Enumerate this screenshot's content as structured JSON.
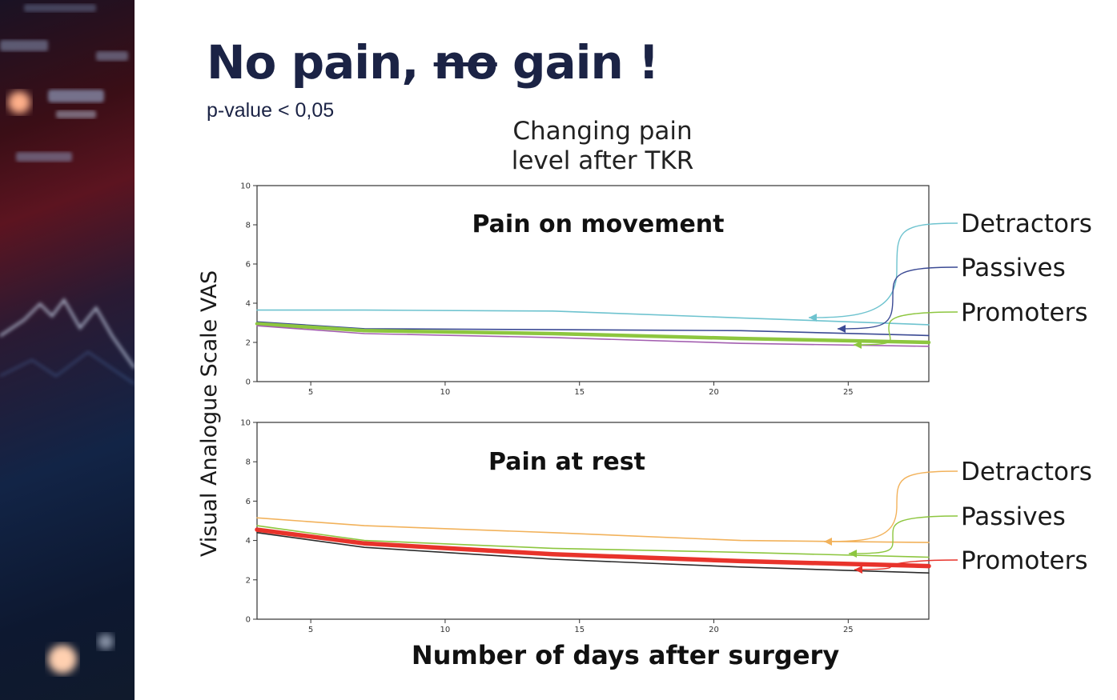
{
  "slide": {
    "title_prefix": "No pain, ",
    "title_strike": "no",
    "title_suffix": " gain !",
    "subtitle": "p-value < 0,05",
    "chart_heading_line1": "Changing pain",
    "chart_heading_line2": "level after TKR"
  },
  "chart_data": [
    {
      "type": "line",
      "title": "Pain on movement",
      "xlabel": "Number of days after surgery",
      "ylabel": "Visual Analogue Scale VAS",
      "xlim": [
        3,
        28
      ],
      "ylim": [
        0,
        10
      ],
      "xticks": [
        5,
        10,
        15,
        20,
        25
      ],
      "yticks": [
        0,
        2,
        4,
        6,
        8,
        10
      ],
      "legend": [
        "Detractors",
        "Passives",
        "Promoters"
      ],
      "series": [
        {
          "name": "Detractors",
          "color": "#6ec3cf",
          "x": [
            3,
            7,
            14,
            21,
            28
          ],
          "values": [
            3.65,
            3.65,
            3.6,
            3.25,
            2.9
          ]
        },
        {
          "name": "Passives",
          "color": "#3b4a94",
          "x": [
            3,
            7,
            14,
            21,
            28
          ],
          "values": [
            3.05,
            2.7,
            2.65,
            2.6,
            2.35
          ]
        },
        {
          "name": "Promoters",
          "color": "#8dc63f",
          "x": [
            3,
            7,
            14,
            21,
            28
          ],
          "values": [
            2.95,
            2.6,
            2.45,
            2.2,
            2.0
          ]
        },
        {
          "name": "",
          "color": "#a35fb0",
          "x": [
            3,
            7,
            14,
            21,
            28
          ],
          "values": [
            2.85,
            2.45,
            2.25,
            1.95,
            1.8
          ]
        }
      ]
    },
    {
      "type": "line",
      "title": "Pain at rest",
      "xlabel": "Number of days after surgery",
      "ylabel": "Visual Analogue Scale VAS",
      "xlim": [
        3,
        28
      ],
      "ylim": [
        0,
        10
      ],
      "xticks": [
        5,
        10,
        15,
        20,
        25
      ],
      "yticks": [
        0,
        2,
        4,
        6,
        8,
        10
      ],
      "legend": [
        "Detractors",
        "Passives",
        "Promoters"
      ],
      "series": [
        {
          "name": "Detractors",
          "color": "#f2b25b",
          "x": [
            3,
            7,
            14,
            21,
            28
          ],
          "values": [
            5.15,
            4.75,
            4.4,
            4.0,
            3.9
          ]
        },
        {
          "name": "Passives",
          "color": "#8dc63f",
          "x": [
            3,
            7,
            14,
            21,
            28
          ],
          "values": [
            4.75,
            4.0,
            3.6,
            3.4,
            3.15
          ]
        },
        {
          "name": "Promoters",
          "color": "#e8332b",
          "x": [
            3,
            7,
            14,
            21,
            28
          ],
          "values": [
            4.55,
            3.85,
            3.3,
            2.95,
            2.7
          ]
        },
        {
          "name": "",
          "color": "#2b2b2b",
          "x": [
            3,
            7,
            14,
            21,
            28
          ],
          "values": [
            4.4,
            3.65,
            3.05,
            2.65,
            2.35
          ]
        }
      ]
    }
  ]
}
